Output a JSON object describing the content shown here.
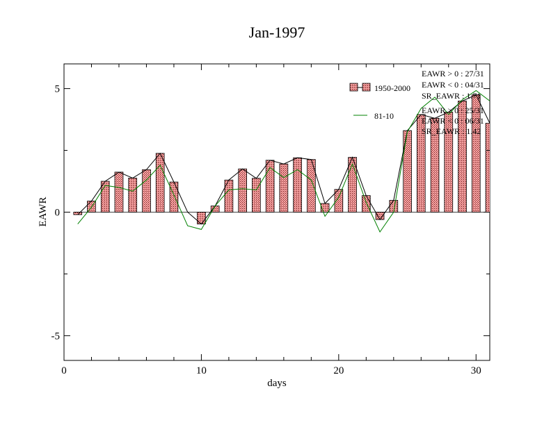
{
  "chart_data": {
    "type": "bar",
    "title": "Jan-1997",
    "xlabel": "days",
    "ylabel": "EAWR",
    "xlim": [
      0,
      31
    ],
    "ylim": [
      -6,
      6
    ],
    "xticks": [
      0,
      10,
      20,
      30
    ],
    "yticks": [
      -5,
      0,
      5
    ],
    "x": [
      1,
      2,
      3,
      4,
      5,
      6,
      7,
      8,
      9,
      10,
      11,
      12,
      13,
      14,
      15,
      16,
      17,
      18,
      19,
      20,
      21,
      22,
      23,
      24,
      25,
      26,
      27,
      28,
      29,
      30,
      31
    ],
    "series": [
      {
        "name": "1950-2000",
        "kind": "bar",
        "color": "#f08080",
        "values": [
          -0.1,
          0.45,
          1.25,
          1.62,
          1.38,
          1.72,
          2.38,
          1.22,
          0.0,
          -0.48,
          0.25,
          1.3,
          1.75,
          1.37,
          2.1,
          1.95,
          2.2,
          2.13,
          0.35,
          0.92,
          2.22,
          0.67,
          -0.3,
          0.48,
          3.3,
          3.95,
          3.8,
          4.05,
          4.5,
          4.75,
          3.6
        ]
      },
      {
        "name": "",
        "kind": "line",
        "color": "#000000",
        "values": [
          -0.1,
          0.45,
          1.25,
          1.62,
          1.38,
          1.72,
          2.38,
          1.22,
          0.0,
          -0.48,
          0.25,
          1.3,
          1.75,
          1.37,
          2.1,
          1.95,
          2.2,
          2.13,
          0.35,
          0.92,
          2.22,
          0.67,
          -0.3,
          0.48,
          3.3,
          3.95,
          3.8,
          4.05,
          4.5,
          4.75,
          3.6
        ]
      },
      {
        "name": "81-10",
        "kind": "line",
        "color": "#008000",
        "values": [
          -0.48,
          0.2,
          1.08,
          1.0,
          0.85,
          1.3,
          1.9,
          0.7,
          -0.55,
          -0.7,
          0.25,
          0.9,
          0.95,
          0.9,
          1.8,
          1.4,
          1.72,
          1.3,
          -0.17,
          0.6,
          1.95,
          0.4,
          -0.8,
          0.0,
          3.25,
          4.2,
          4.65,
          3.95,
          4.55,
          4.92,
          4.5
        ]
      }
    ],
    "legend": [
      {
        "label": "1950-2000",
        "kind": "bar"
      },
      {
        "label": "81-10",
        "kind": "line"
      }
    ],
    "stats_1950_2000": [
      "EAWR > 0 : 27/31",
      "EAWR < 0 : 04/31",
      "SR_EAWR : 1.71"
    ],
    "stats_81_10": [
      "EAWR > 0 : 25/31",
      "EAWR < 0 : 06/31",
      "SR_EAWR : 1.42"
    ],
    "legend_position": "top-right",
    "grid": false
  }
}
